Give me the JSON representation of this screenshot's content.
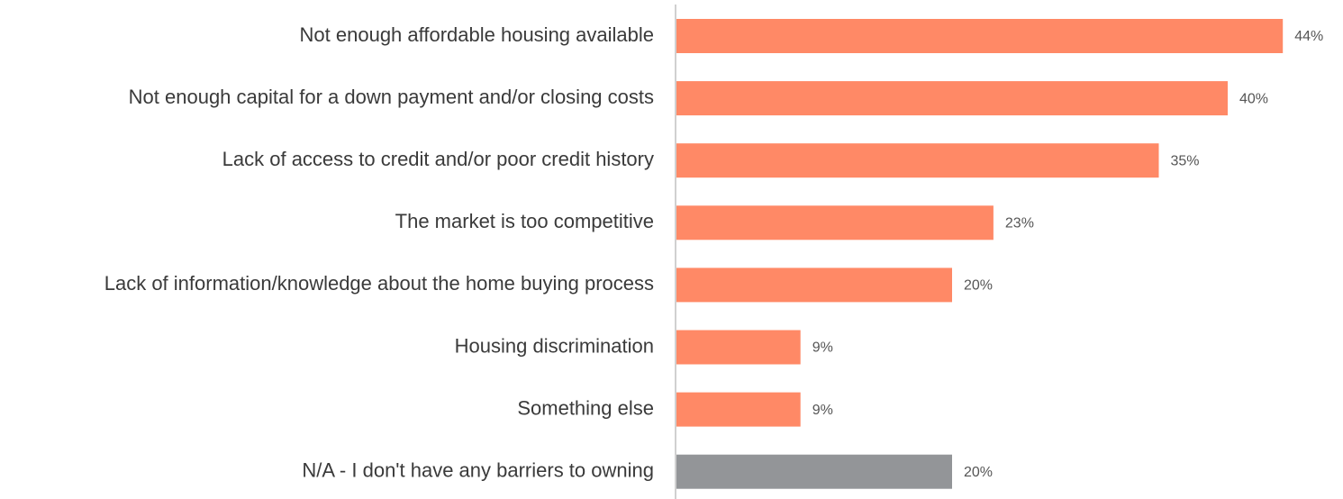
{
  "chart_data": {
    "type": "barh",
    "categories": [
      "Not enough affordable housing available",
      "Not enough capital for a down payment and/or closing costs",
      "Lack of access to credit and/or poor credit history",
      "The market is too competitive",
      "Lack of information/knowledge about the home buying process",
      "Housing discrimination",
      "Something else",
      "N/A - I don't have any barriers to owning"
    ],
    "values": [
      44,
      40,
      35,
      23,
      20,
      9,
      9,
      20
    ],
    "value_labels": [
      "44%",
      "40%",
      "35%",
      "23%",
      "20%",
      "9%",
      "9%",
      "20%"
    ],
    "colors": [
      "#ff8966",
      "#ff8966",
      "#ff8966",
      "#ff8966",
      "#ff8966",
      "#ff8966",
      "#ff8966",
      "#939598"
    ]
  }
}
